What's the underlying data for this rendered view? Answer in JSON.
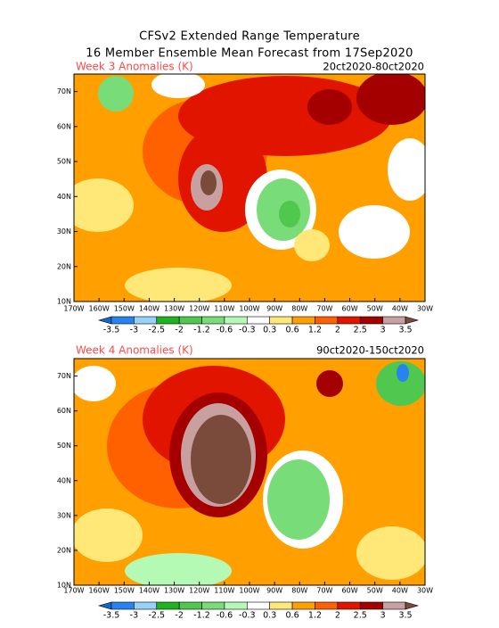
{
  "title": [
    "CFSv2 Extended Range Temperature",
    "16 Member Ensemble Mean Forecast from 17Sep2020"
  ],
  "panels": [
    {
      "label": "Week 3 Anomalies (K)",
      "dates": "20ct2020-80ct2020"
    },
    {
      "label": "Week 4 Anomalies (K)",
      "dates": "90ct2020-150ct2020"
    }
  ],
  "lat_labels": [
    "70N",
    "60N",
    "50N",
    "40N",
    "30N",
    "20N",
    "10N"
  ],
  "lon_labels": [
    "170W",
    "160W",
    "150W",
    "140W",
    "130W",
    "120W",
    "110W",
    "100W",
    "90W",
    "80W",
    "70W",
    "60W",
    "50W",
    "40W",
    "30W"
  ],
  "colorbar_labels": [
    "-3.5",
    "-3",
    "-2.5",
    "-2",
    "-1.2",
    "-0.6",
    "-0.3",
    "0.3",
    "0.6",
    "1.2",
    "2",
    "2.5",
    "3",
    "3.5"
  ]
}
